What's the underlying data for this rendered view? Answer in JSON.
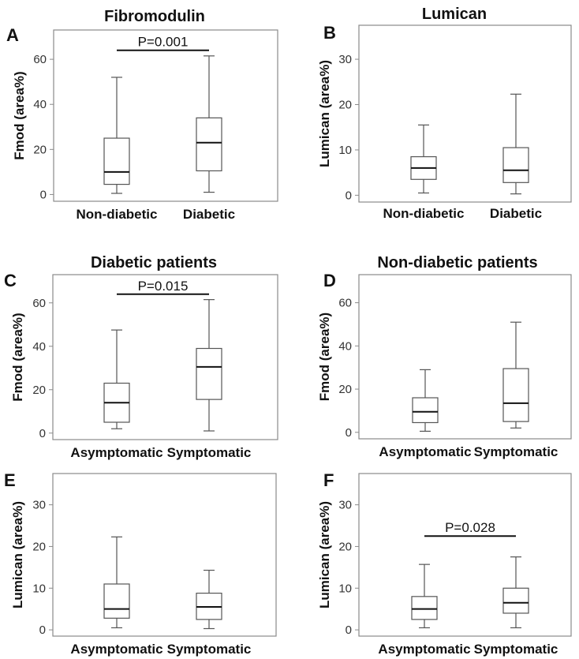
{
  "figure": {
    "background": "#ffffff",
    "frame_color": "#8a8a8a",
    "box_color": "#555555"
  },
  "chart_data": [
    {
      "panel": "A",
      "type": "box",
      "title": "Fibromodulin",
      "ylabel": "Fmod (area%)",
      "ylim": [
        -3,
        73
      ],
      "yticks": [
        0,
        20,
        40,
        60
      ],
      "categories": [
        "Non-diabetic",
        "Diabetic"
      ],
      "boxes": [
        {
          "min": 0.5,
          "q1": 4.5,
          "median": 10,
          "q3": 25,
          "max": 52
        },
        {
          "min": 1,
          "q1": 10.5,
          "median": 23,
          "q3": 34,
          "max": 61.5
        }
      ],
      "annotation": {
        "text": "P=0.001",
        "y": 64
      }
    },
    {
      "panel": "B",
      "type": "box",
      "title": "Lumican",
      "ylabel": "Lumican (area%)",
      "ylim": [
        -1.5,
        37.5
      ],
      "yticks": [
        0,
        10,
        20,
        30
      ],
      "categories": [
        "Non-diabetic",
        "Diabetic"
      ],
      "boxes": [
        {
          "min": 0.5,
          "q1": 3.5,
          "median": 6,
          "q3": 8.5,
          "max": 15.5
        },
        {
          "min": 0.3,
          "q1": 2.8,
          "median": 5.5,
          "q3": 10.5,
          "max": 22.3
        }
      ]
    },
    {
      "panel": "C",
      "type": "box",
      "title": "Diabetic patients",
      "ylabel": "Fmod (area%)",
      "ylim": [
        -3,
        73
      ],
      "yticks": [
        0,
        20,
        40,
        60
      ],
      "categories": [
        "Asymptomatic",
        "Symptomatic"
      ],
      "boxes": [
        {
          "min": 2,
          "q1": 5,
          "median": 14,
          "q3": 23,
          "max": 47.5
        },
        {
          "min": 1,
          "q1": 15.5,
          "median": 30.5,
          "q3": 39,
          "max": 61.5
        }
      ],
      "annotation": {
        "text": "P=0.015",
        "y": 64
      }
    },
    {
      "panel": "D",
      "type": "box",
      "title": "Non-diabetic patients",
      "ylabel": "Fmod (area%)",
      "ylim": [
        -3,
        73
      ],
      "yticks": [
        0,
        20,
        40,
        60
      ],
      "categories": [
        "Asymptomatic",
        "Symptomatic"
      ],
      "boxes": [
        {
          "min": 0.5,
          "q1": 4.5,
          "median": 9.5,
          "q3": 16,
          "max": 29
        },
        {
          "min": 2,
          "q1": 5,
          "median": 13.5,
          "q3": 29.5,
          "max": 51
        }
      ]
    },
    {
      "panel": "E",
      "type": "box",
      "title": "",
      "ylabel": "Lumican (area%)",
      "ylim": [
        -1.5,
        37.5
      ],
      "yticks": [
        0,
        10,
        20,
        30
      ],
      "categories": [
        "Asymptomatic",
        "Symptomatic"
      ],
      "boxes": [
        {
          "min": 0.5,
          "q1": 2.8,
          "median": 5,
          "q3": 11,
          "max": 22.3
        },
        {
          "min": 0.3,
          "q1": 2.5,
          "median": 5.5,
          "q3": 8.8,
          "max": 14.3
        }
      ]
    },
    {
      "panel": "F",
      "type": "box",
      "title": "",
      "ylabel": "Lumican (area%)",
      "ylim": [
        -1.5,
        37.5
      ],
      "yticks": [
        0,
        10,
        20,
        30
      ],
      "categories": [
        "Asymptomatic",
        "Symptomatic"
      ],
      "boxes": [
        {
          "min": 0.5,
          "q1": 2.5,
          "median": 5,
          "q3": 8,
          "max": 15.7
        },
        {
          "min": 0.5,
          "q1": 4,
          "median": 6.5,
          "q3": 10,
          "max": 17.5
        }
      ],
      "annotation": {
        "text": "P=0.028",
        "y": 22.5
      }
    }
  ]
}
